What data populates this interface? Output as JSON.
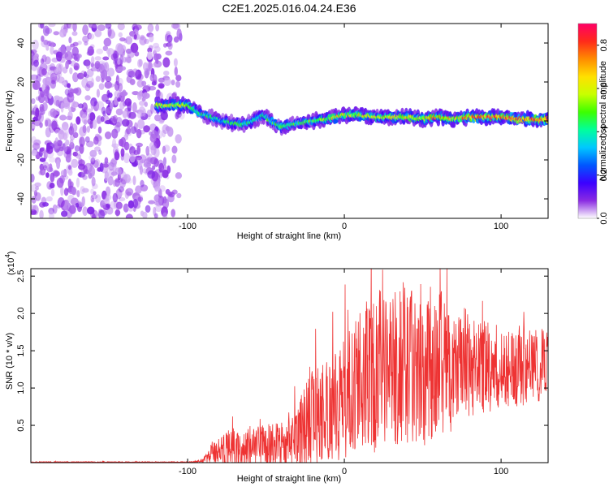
{
  "title": "C2E1.2025.016.04.24.E36",
  "chart_data": [
    {
      "type": "heatmap",
      "xlabel": "Height of straight line (km)",
      "ylabel": "Frequency (Hz)",
      "xlim": [
        -200,
        130
      ],
      "ylim": [
        -50,
        50
      ],
      "x_ticks": [
        -100,
        0,
        100
      ],
      "y_ticks": [
        -40,
        -20,
        0,
        20,
        40
      ],
      "colorbar": {
        "label": "Normalized spectral amplitude",
        "range": [
          0.0,
          0.9
        ],
        "ticks": [
          0.0,
          0.2,
          0.4,
          0.6,
          0.8
        ],
        "tick_labels": [
          "0.0",
          "0.2",
          "0.4",
          "0.6",
          "0.8"
        ],
        "colors": [
          "#ffffff",
          "#8a2be2",
          "#3b00ff",
          "#0057ff",
          "#00c8ff",
          "#00ff9c",
          "#3cff00",
          "#c8ff00",
          "#ffe000",
          "#ff8c00",
          "#ff2a1a",
          "#ff0066"
        ]
      },
      "noise_region": {
        "x_range": [
          -200,
          -100
        ],
        "amplitude": 0.08
      },
      "signal_ridge": {
        "x": [
          -120,
          -110,
          -100,
          -92,
          -85,
          -78,
          -72,
          -65,
          -58,
          -52,
          -45,
          -40,
          -35,
          -28,
          -20,
          -12,
          -5,
          0,
          10,
          20,
          30,
          40,
          50,
          60,
          70,
          80,
          90,
          100,
          110,
          120,
          130
        ],
        "freq": [
          8,
          8,
          8,
          4,
          2,
          0,
          -1,
          -2,
          0,
          3,
          -1,
          -3,
          -2,
          -1,
          0,
          1,
          2,
          3,
          3,
          2,
          2,
          2,
          1,
          2,
          1,
          2,
          2,
          2,
          1,
          1,
          1
        ],
        "amplitude": [
          0.55,
          0.6,
          0.55,
          0.45,
          0.4,
          0.35,
          0.4,
          0.45,
          0.4,
          0.4,
          0.45,
          0.5,
          0.45,
          0.45,
          0.5,
          0.55,
          0.6,
          0.55,
          0.6,
          0.55,
          0.6,
          0.65,
          0.6,
          0.7,
          0.65,
          0.75,
          0.8,
          0.75,
          0.85,
          0.8,
          0.8
        ]
      }
    },
    {
      "type": "line",
      "xlabel": "Height of straight line (km)",
      "ylabel": "SNR (10 * v/v)",
      "y_multiplier": "(x10",
      "y_multiplier_exp": "4",
      "xlim": [
        -200,
        130
      ],
      "ylim": [
        0,
        26000
      ],
      "x_ticks": [
        -100,
        0,
        100
      ],
      "y_ticks": [
        5000,
        10000,
        15000,
        20000,
        25000
      ],
      "y_tick_labels": [
        "0.5",
        "1.0",
        "1.5",
        "2.0",
        "2.5"
      ],
      "color": "#ee3333",
      "series": [
        {
          "x": [
            -200,
            -180,
            -160,
            -140,
            -120,
            -100,
            -95,
            -90,
            -85,
            -80,
            -75,
            -70,
            -65,
            -60,
            -55,
            -50,
            -45,
            -40,
            -35,
            -30,
            -25,
            -20,
            -15,
            -10,
            -5,
            0,
            5,
            10,
            15,
            20,
            25,
            30,
            35,
            40,
            45,
            50,
            55,
            60,
            65,
            70,
            75,
            80,
            85,
            90,
            95,
            100,
            105,
            110,
            115,
            120,
            125,
            130
          ],
          "mean": [
            80,
            80,
            80,
            80,
            80,
            80,
            100,
            300,
            1200,
            1600,
            1800,
            1900,
            2000,
            2100,
            2200,
            2200,
            2300,
            2400,
            2600,
            3200,
            4500,
            5500,
            6200,
            6800,
            7500,
            8500,
            9500,
            10500,
            11500,
            12000,
            12500,
            13000,
            13200,
            13500,
            13300,
            13000,
            13200,
            13800,
            13500,
            13200,
            13000,
            13000,
            12800,
            12800,
            12500,
            12500,
            12800,
            12800,
            13000,
            13000,
            13000,
            13200
          ],
          "amp": [
            60,
            60,
            60,
            60,
            60,
            60,
            100,
            300,
            1500,
            2000,
            2500,
            2800,
            3000,
            3000,
            3000,
            3000,
            3000,
            3200,
            3500,
            4500,
            6000,
            7000,
            7000,
            7000,
            7500,
            8000,
            9000,
            10000,
            10500,
            11000,
            11000,
            11000,
            11000,
            11000,
            11000,
            11000,
            10500,
            10000,
            9500,
            9000,
            8000,
            7500,
            7000,
            6500,
            6000,
            6000,
            5500,
            5500,
            5500,
            5000,
            5000,
            5000
          ]
        }
      ]
    }
  ]
}
